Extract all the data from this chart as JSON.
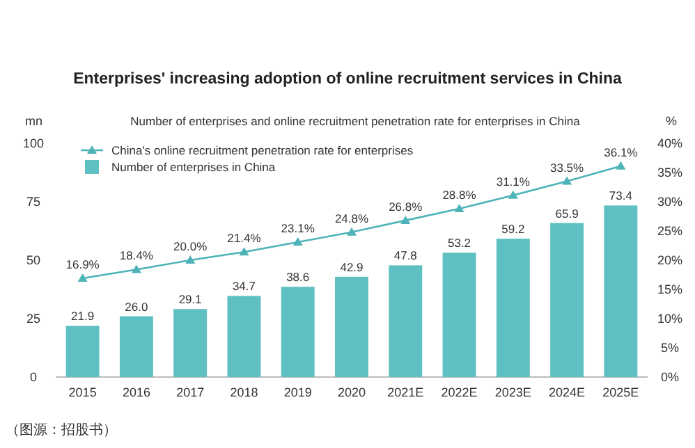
{
  "chart_data": {
    "type": "bar",
    "title": "Enterprises' increasing adoption of online recruitment services in China",
    "subtitle": "Number of enterprises and online recruitment penetration rate for enterprises in China",
    "ylabel": "mn",
    "y2label": "%",
    "categories": [
      "2015",
      "2016",
      "2017",
      "2018",
      "2019",
      "2020",
      "2021E",
      "2022E",
      "2023E",
      "2024E",
      "2025E"
    ],
    "series": [
      {
        "name": "China's online recruitment penetration rate for enterprises",
        "type": "line",
        "axis": "y2",
        "color": "#4db3b9",
        "marker": "triangle",
        "values": [
          16.9,
          18.4,
          20.0,
          21.4,
          23.1,
          24.8,
          26.8,
          28.8,
          31.1,
          33.5,
          36.1
        ],
        "value_labels": [
          "16.9%",
          "18.4%",
          "20.0%",
          "21.4%",
          "23.1%",
          "24.8%",
          "26.8%",
          "28.8%",
          "31.1%",
          "33.5%",
          "36.1%"
        ]
      },
      {
        "name": "Number of enterprises in China",
        "color": "#5fc0c3",
        "values": [
          21.9,
          26.0,
          29.1,
          34.7,
          38.6,
          42.9,
          47.8,
          53.2,
          59.2,
          65.9,
          73.4
        ],
        "value_labels": [
          "21.9",
          "26.0",
          "29.1",
          "34.7",
          "38.6",
          "42.9",
          "47.8",
          "53.2",
          "59.2",
          "65.9",
          "73.4"
        ]
      }
    ],
    "ylim": [
      0,
      100
    ],
    "yticks": [
      0,
      25,
      50,
      75,
      100
    ],
    "y2lim": [
      0,
      40
    ],
    "y2ticks": [
      {
        "value": 0,
        "label": "0%"
      },
      {
        "value": 5,
        "label": "5%"
      },
      {
        "value": 10,
        "label": "10%"
      },
      {
        "value": 15,
        "label": "15%"
      },
      {
        "value": 20,
        "label": "20%"
      },
      {
        "value": 25,
        "label": "25%"
      },
      {
        "value": 30,
        "label": "30%"
      },
      {
        "value": 35,
        "label": "35%"
      },
      {
        "value": 40,
        "label": "40%"
      }
    ],
    "legend": "top left",
    "grid": false,
    "annotations": [
      "（图源：招股书）"
    ]
  }
}
